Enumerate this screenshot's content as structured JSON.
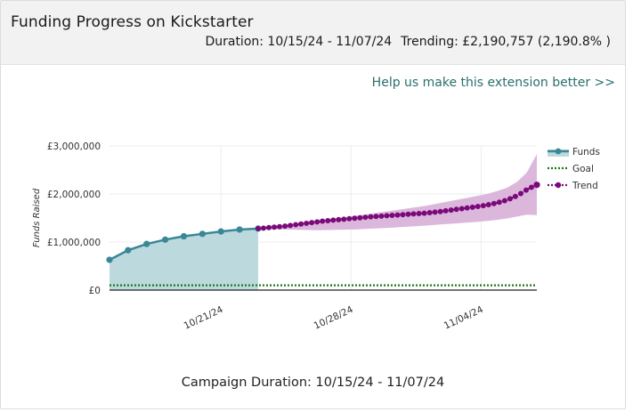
{
  "header": {
    "title": "Funding Progress on Kickstarter",
    "duration_text": "Duration: 10/15/24 - 11/07/24",
    "trending_text": "Trending: £2,190,757 (2,190.8% )"
  },
  "help_link": "Help us make this extension better >>",
  "caption": "Campaign Duration: 10/15/24 - 11/07/24",
  "colors": {
    "funds": "#3a8797",
    "funds_fill": "#bcd9dd",
    "goal": "#1a7a1a",
    "trend": "#7a0a7a",
    "trend_band": "#d9b3da"
  },
  "chart_data": {
    "type": "line",
    "ylabel": "Funds Raised",
    "xlabel": "",
    "ylim": [
      0,
      3000000
    ],
    "y_ticks": [
      "£0",
      "£1,000,000",
      "£2,000,000",
      "£3,000,000"
    ],
    "x_ticks": [
      "10/21/24",
      "10/28/24",
      "11/04/24"
    ],
    "legend_position": "right",
    "series": [
      {
        "name": "Funds",
        "style": "solid-area",
        "x": [
          "2024-10-15",
          "2024-10-16",
          "2024-10-17",
          "2024-10-18",
          "2024-10-19",
          "2024-10-20",
          "2024-10-21",
          "2024-10-22",
          "2024-10-23"
        ],
        "values": [
          630000,
          830000,
          960000,
          1050000,
          1120000,
          1170000,
          1220000,
          1260000,
          1280000
        ]
      },
      {
        "name": "Goal",
        "style": "dotted",
        "x": [
          "2024-10-15",
          "2024-11-07"
        ],
        "values": [
          100000,
          100000
        ]
      },
      {
        "name": "Trend",
        "style": "dotted-markers-band",
        "x_start": "2024-10-23",
        "x_end": "2024-11-07",
        "values": [
          1280000,
          1290000,
          1300000,
          1310000,
          1320000,
          1330000,
          1345000,
          1360000,
          1375000,
          1390000,
          1405000,
          1420000,
          1435000,
          1445000,
          1455000,
          1465000,
          1475000,
          1485000,
          1495000,
          1505000,
          1515000,
          1525000,
          1532000,
          1540000,
          1548000,
          1555000,
          1562000,
          1570000,
          1578000,
          1585000,
          1593000,
          1600000,
          1610000,
          1622000,
          1635000,
          1650000,
          1665000,
          1680000,
          1695000,
          1710000,
          1725000,
          1740000,
          1758000,
          1778000,
          1800000,
          1828000,
          1860000,
          1900000,
          1950000,
          2010000,
          2080000,
          2140000,
          2190757
        ],
        "band_upper": [
          1280000,
          1310000,
          1340000,
          1370000,
          1400000,
          1425000,
          1450000,
          1475000,
          1500000,
          1525000,
          1550000,
          1580000,
          1610000,
          1640000,
          1670000,
          1700000,
          1730000,
          1760000,
          1800000,
          1840000,
          1880000,
          1920000,
          1960000,
          2000000,
          2060000,
          2130000,
          2250000,
          2450000,
          2830000
        ],
        "band_lower": [
          1280000,
          1270000,
          1265000,
          1260000,
          1255000,
          1250000,
          1245000,
          1250000,
          1255000,
          1260000,
          1265000,
          1275000,
          1285000,
          1295000,
          1305000,
          1320000,
          1330000,
          1345000,
          1360000,
          1375000,
          1390000,
          1405000,
          1420000,
          1440000,
          1460000,
          1490000,
          1530000,
          1570000,
          1560000
        ]
      }
    ]
  }
}
